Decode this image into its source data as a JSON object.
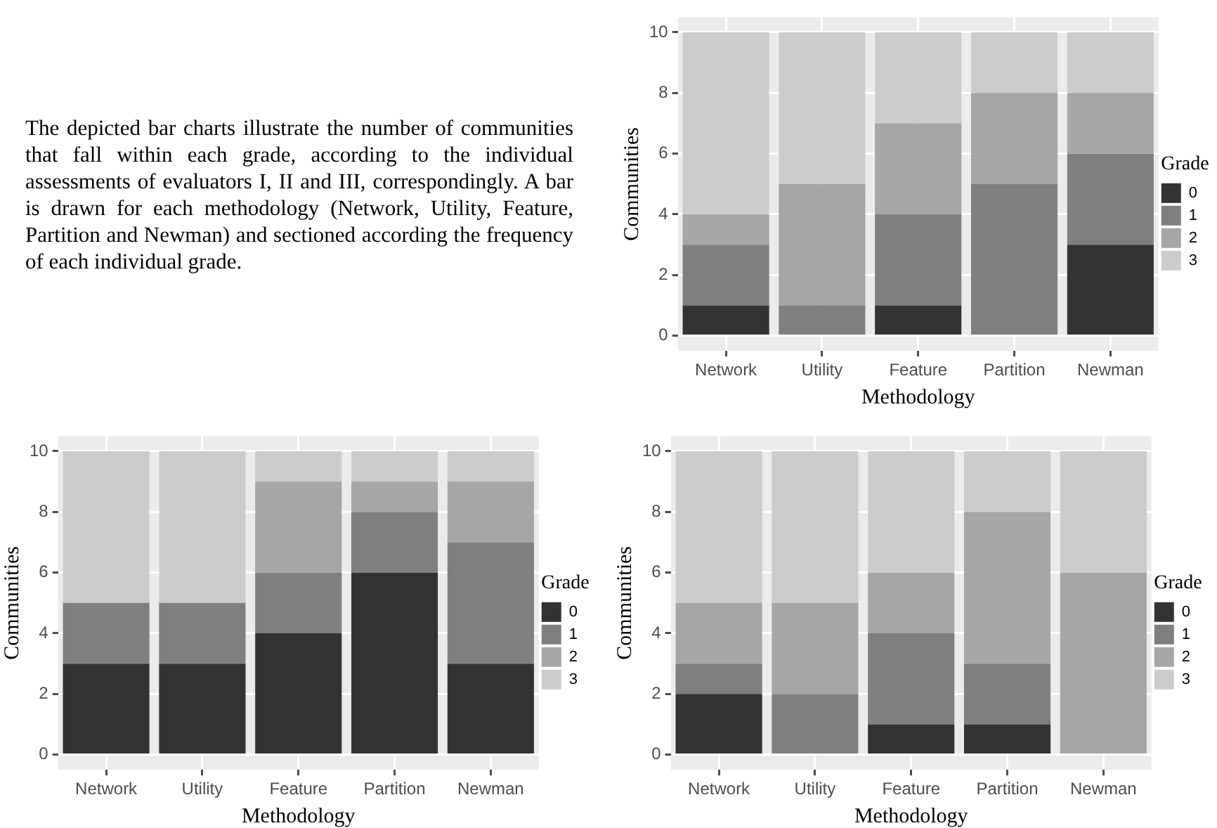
{
  "chart_data": [
    {
      "type": "other",
      "annotations": [
        "The depicted bar charts illustrate the number of communities that fall within each grade, according to the individual assessments of evaluators I, II and III, correspondingly. A bar is drawn for each methodology (Network, Utility, Feature, Partition and Newman) and sectioned according the frequency of each individual grade."
      ]
    },
    {
      "type": "bar",
      "stacked": true,
      "xlabel": "Methodology",
      "ylabel": "Communities",
      "legend_title": "Grade",
      "legend": "right",
      "grid": true,
      "ylim": [
        -0.5,
        10.5
      ],
      "yticks": [
        0,
        2,
        4,
        6,
        8,
        10
      ],
      "categories": [
        "Network",
        "Utility",
        "Feature",
        "Partition",
        "Newman"
      ],
      "series": [
        {
          "name": "0",
          "color": "#333333",
          "values": [
            1,
            0,
            1,
            0,
            3
          ]
        },
        {
          "name": "1",
          "color": "#7f7f7f",
          "values": [
            2,
            1,
            3,
            5,
            3
          ]
        },
        {
          "name": "2",
          "color": "#a6a6a6",
          "values": [
            1,
            4,
            3,
            3,
            2
          ]
        },
        {
          "name": "3",
          "color": "#cccccc",
          "values": [
            6,
            5,
            3,
            2,
            2
          ]
        }
      ]
    },
    {
      "type": "bar",
      "stacked": true,
      "xlabel": "Methodology",
      "ylabel": "Communities",
      "legend_title": "Grade",
      "legend": "right",
      "grid": true,
      "ylim": [
        -0.5,
        10.5
      ],
      "yticks": [
        0,
        2,
        4,
        6,
        8,
        10
      ],
      "categories": [
        "Network",
        "Utility",
        "Feature",
        "Partition",
        "Newman"
      ],
      "series": [
        {
          "name": "0",
          "color": "#333333",
          "values": [
            3,
            3,
            4,
            6,
            3
          ]
        },
        {
          "name": "1",
          "color": "#7f7f7f",
          "values": [
            2,
            2,
            2,
            2,
            4
          ]
        },
        {
          "name": "2",
          "color": "#a6a6a6",
          "values": [
            0,
            0,
            3,
            1,
            2
          ]
        },
        {
          "name": "3",
          "color": "#cccccc",
          "values": [
            5,
            5,
            1,
            1,
            1
          ]
        }
      ]
    },
    {
      "type": "bar",
      "stacked": true,
      "xlabel": "Methodology",
      "ylabel": "Communities",
      "legend_title": "Grade",
      "legend": "right",
      "grid": true,
      "ylim": [
        -0.5,
        10.5
      ],
      "yticks": [
        0,
        2,
        4,
        6,
        8,
        10
      ],
      "categories": [
        "Network",
        "Utility",
        "Feature",
        "Partition",
        "Newman"
      ],
      "series": [
        {
          "name": "0",
          "color": "#333333",
          "values": [
            2,
            0,
            1,
            1,
            0
          ]
        },
        {
          "name": "1",
          "color": "#7f7f7f",
          "values": [
            1,
            2,
            3,
            2,
            0
          ]
        },
        {
          "name": "2",
          "color": "#a6a6a6",
          "values": [
            2,
            3,
            2,
            5,
            6
          ]
        },
        {
          "name": "3",
          "color": "#cccccc",
          "values": [
            5,
            5,
            4,
            2,
            4
          ]
        }
      ]
    }
  ]
}
